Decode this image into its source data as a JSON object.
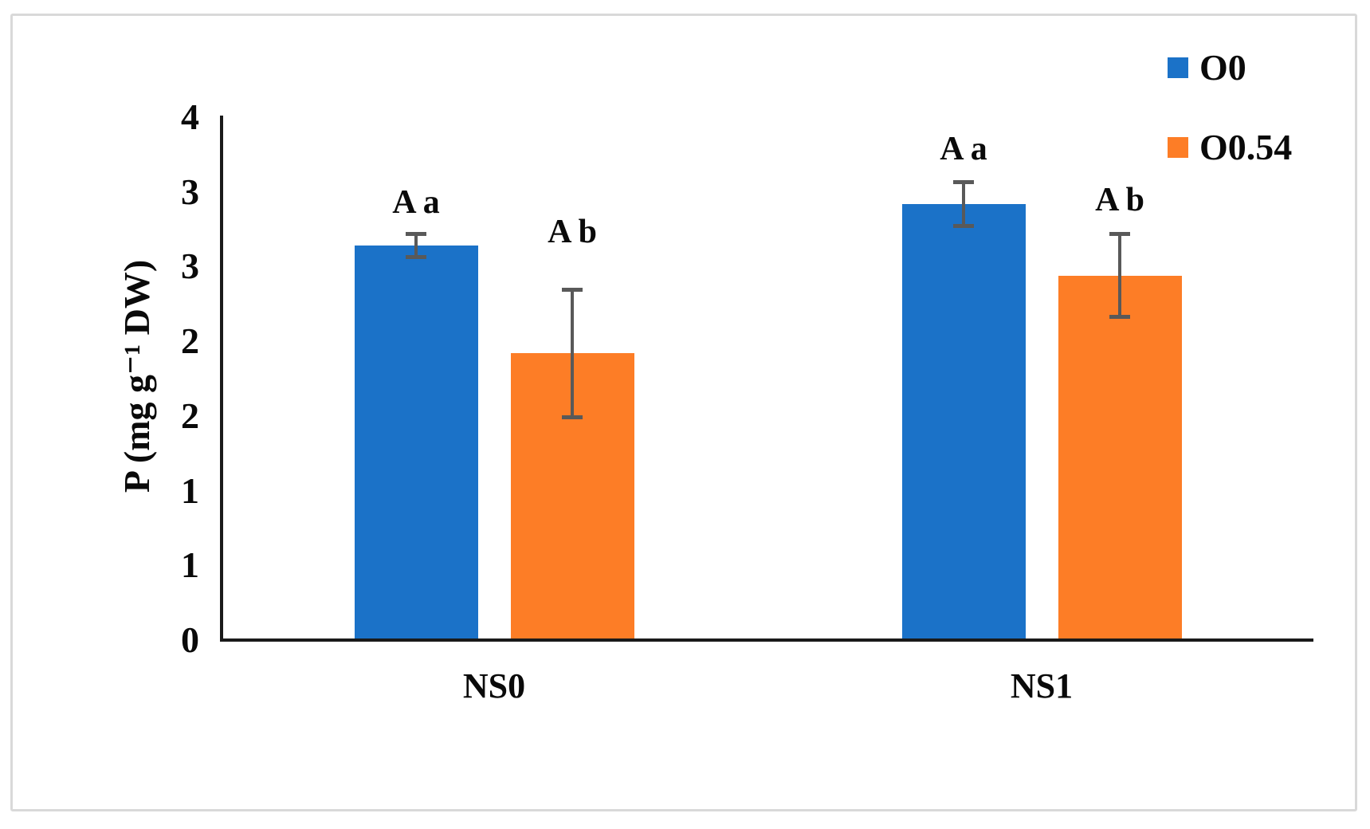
{
  "figure": {
    "background": "#ffffff",
    "frame_color": "#d9d9d9"
  },
  "chart_data": {
    "type": "bar",
    "title": "",
    "categories": [
      "NS0",
      "NS1"
    ],
    "series": [
      {
        "name": "O0",
        "color": "#1b72c8",
        "values": [
          2.64,
          2.92
        ],
        "errors": [
          0.09,
          0.16
        ],
        "point_labels": [
          "A a",
          "A a"
        ]
      },
      {
        "name": "O0.54",
        "color": "#fd7d26",
        "values": [
          1.92,
          2.44
        ],
        "errors": [
          0.44,
          0.29
        ],
        "point_labels": [
          "A b",
          "A b"
        ]
      }
    ],
    "xlabel": "",
    "ylabel": "P (mg g⁻¹ DW)",
    "ylim": [
      0,
      3.5
    ],
    "yticks": [
      {
        "value": 0.0,
        "label": "0"
      },
      {
        "value": 0.5,
        "label": "1"
      },
      {
        "value": 1.0,
        "label": "1"
      },
      {
        "value": 1.5,
        "label": "2"
      },
      {
        "value": 2.0,
        "label": "2"
      },
      {
        "value": 2.5,
        "label": "3"
      },
      {
        "value": 3.0,
        "label": "3"
      },
      {
        "value": 3.5,
        "label": "4"
      }
    ],
    "grid": false,
    "legend_position": "top-right",
    "error_bar_color": "#595959",
    "axis_color": "#1a1a1a",
    "text_color": "#0a0a0a"
  }
}
